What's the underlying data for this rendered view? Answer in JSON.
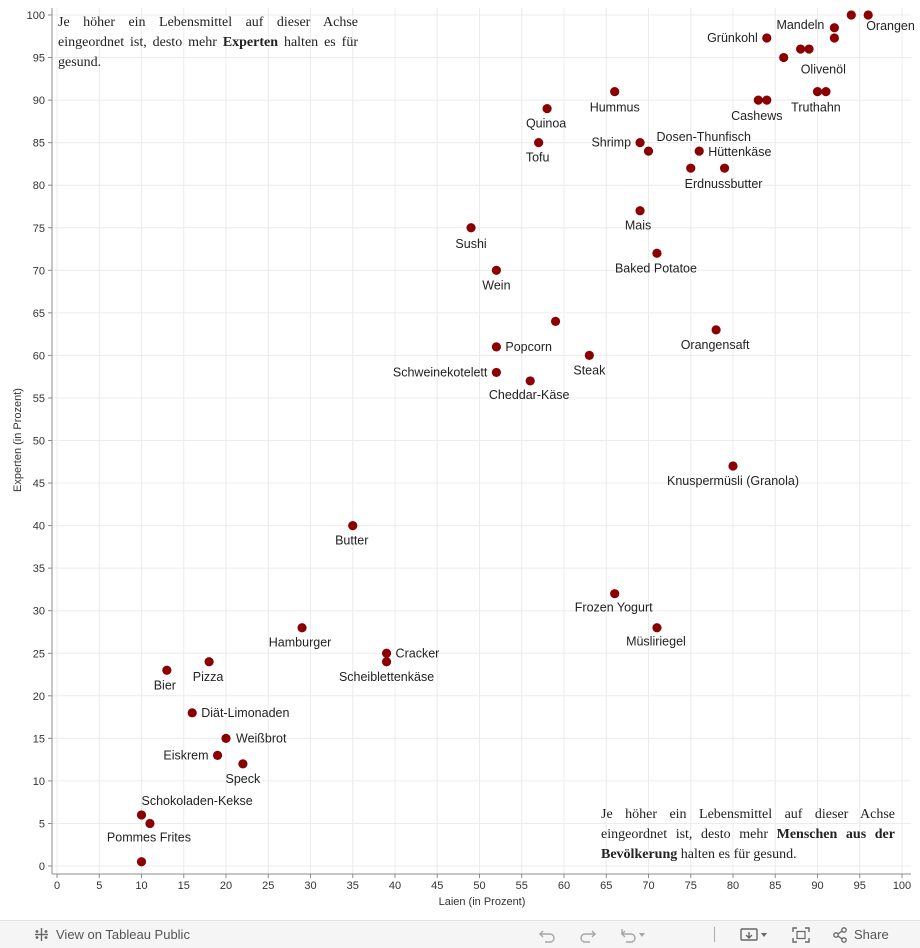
{
  "chart_data": {
    "type": "scatter",
    "xlabel": "Laien (in Prozent)",
    "ylabel": "Experten (in Prozent)",
    "xlim": [
      0,
      100
    ],
    "ylim": [
      0,
      100
    ],
    "x_ticks": [
      0,
      5,
      10,
      15,
      20,
      25,
      30,
      35,
      40,
      45,
      50,
      55,
      60,
      65,
      70,
      75,
      80,
      85,
      90,
      95,
      100
    ],
    "y_ticks": [
      0,
      5,
      10,
      15,
      20,
      25,
      30,
      35,
      40,
      45,
      50,
      55,
      60,
      65,
      70,
      75,
      80,
      85,
      90,
      95,
      100
    ],
    "grid": true,
    "marker_color": "#8b0000",
    "points": [
      {
        "label": "Orangen",
        "x": 96,
        "y": 100
      },
      {
        "label": "",
        "x": 94,
        "y": 100
      },
      {
        "label": "Mandeln",
        "x": 92,
        "y": 98.5
      },
      {
        "label": "",
        "x": 92,
        "y": 97.3
      },
      {
        "label": "Grünkohl",
        "x": 84,
        "y": 97.3
      },
      {
        "label": "",
        "x": 88,
        "y": 96
      },
      {
        "label": "",
        "x": 89,
        "y": 96
      },
      {
        "label": "Olivenöl",
        "x": 86,
        "y": 95
      },
      {
        "label": "Hummus",
        "x": 66,
        "y": 91
      },
      {
        "label": "",
        "x": 90,
        "y": 91
      },
      {
        "label": "Truthahn",
        "x": 91,
        "y": 91
      },
      {
        "label": "",
        "x": 83,
        "y": 90
      },
      {
        "label": "Cashews",
        "x": 84,
        "y": 90
      },
      {
        "label": "Quinoa",
        "x": 58,
        "y": 89
      },
      {
        "label": "Tofu",
        "x": 57,
        "y": 85
      },
      {
        "label": "Shrimp",
        "x": 69,
        "y": 85
      },
      {
        "label": "Dosen-Thunfisch",
        "x": 70,
        "y": 84
      },
      {
        "label": "Hüttenkäse",
        "x": 76,
        "y": 84
      },
      {
        "label": "",
        "x": 75,
        "y": 82
      },
      {
        "label": "Erdnussbutter",
        "x": 79,
        "y": 82
      },
      {
        "label": "Mais",
        "x": 69,
        "y": 77
      },
      {
        "label": "Sushi",
        "x": 49,
        "y": 75
      },
      {
        "label": "Baked Potatoe",
        "x": 71,
        "y": 72
      },
      {
        "label": "Wein",
        "x": 52,
        "y": 70
      },
      {
        "label": "",
        "x": 59,
        "y": 64
      },
      {
        "label": "Orangensaft",
        "x": 78,
        "y": 63
      },
      {
        "label": "Popcorn",
        "x": 52,
        "y": 61
      },
      {
        "label": "Steak",
        "x": 63,
        "y": 60
      },
      {
        "label": "Schweinekotelett",
        "x": 52,
        "y": 58
      },
      {
        "label": "Cheddar-Käse",
        "x": 56,
        "y": 57
      },
      {
        "label": "Knuspermüsli (Granola)",
        "x": 80,
        "y": 47
      },
      {
        "label": "Butter",
        "x": 35,
        "y": 40
      },
      {
        "label": "Frozen Yogurt",
        "x": 66,
        "y": 32
      },
      {
        "label": "Hamburger",
        "x": 29,
        "y": 28
      },
      {
        "label": "Müsliriegel",
        "x": 71,
        "y": 28
      },
      {
        "label": "Cracker",
        "x": 39,
        "y": 25
      },
      {
        "label": "Scheiblettenkäse",
        "x": 39,
        "y": 24
      },
      {
        "label": "Pizza",
        "x": 18,
        "y": 24
      },
      {
        "label": "Bier",
        "x": 13,
        "y": 23
      },
      {
        "label": "Diät-Limonaden",
        "x": 16,
        "y": 18
      },
      {
        "label": "Weißbrot",
        "x": 20,
        "y": 15
      },
      {
        "label": "Eiskrem",
        "x": 19,
        "y": 13
      },
      {
        "label": "Speck",
        "x": 22,
        "y": 12
      },
      {
        "label": "Schokoladen-Kekse",
        "x": 10,
        "y": 6
      },
      {
        "label": "Pommes Frites",
        "x": 11,
        "y": 5
      },
      {
        "label": "",
        "x": 10,
        "y": 0.5
      }
    ]
  },
  "annotations": {
    "top": {
      "pre": "Je höher ein Lebensmittel auf dieser Achse eingeordnet ist, desto mehr ",
      "bold": "Experten",
      "post": " halten es für gesund."
    },
    "bottom": {
      "pre": "Je höher ein Lebensmittel auf dieser Achse eingeordnet ist, desto mehr ",
      "bold": "Menschen aus der Bevölkerung",
      "post": " halten es für gesund."
    }
  },
  "toolbar": {
    "view_label": "View on Tableau Public",
    "share_label": "Share",
    "icons": [
      "tableau-logo-icon",
      "undo-icon",
      "redo-icon",
      "revert-icon",
      "pause-icon",
      "download-icon",
      "fullscreen-icon",
      "share-icon"
    ]
  }
}
